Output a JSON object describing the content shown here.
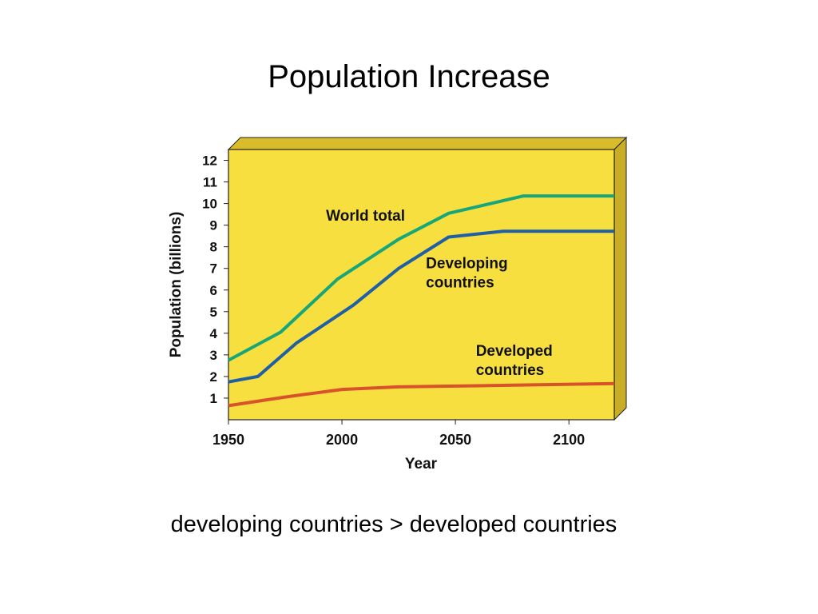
{
  "slide": {
    "title": "Population Increase",
    "caption": "developing countries > developed countries"
  },
  "colors": {
    "panel": "#f7df3f",
    "panel_top": "#d9bc2b",
    "panel_side": "#c9ad26",
    "world": "#17a67a",
    "developing": "#1f5fa6",
    "developed": "#d9532a"
  },
  "chart_data": {
    "type": "line",
    "title": "",
    "xlabel": "Year",
    "ylabel": "Population (billions)",
    "xlim": [
      1950,
      2120
    ],
    "ylim": [
      0,
      12.5
    ],
    "x_ticks": [
      1950,
      2000,
      2050,
      2100
    ],
    "y_ticks": [
      1,
      2,
      3,
      4,
      5,
      6,
      7,
      8,
      9,
      10,
      11,
      12
    ],
    "grid": false,
    "legend": "none",
    "series": [
      {
        "name": "World total",
        "color_key": "world",
        "label_lines": [
          "World total"
        ],
        "label_at": {
          "x": 1993,
          "y": 9.2
        },
        "points": [
          [
            1950,
            2.75
          ],
          [
            1973,
            4.05
          ],
          [
            1998,
            6.5
          ],
          [
            2025,
            8.35
          ],
          [
            2047,
            9.55
          ],
          [
            2080,
            10.35
          ],
          [
            2120,
            10.35
          ]
        ]
      },
      {
        "name": "Developing countries",
        "color_key": "developing",
        "label_lines": [
          "Developing",
          "countries"
        ],
        "label_at": {
          "x": 2037,
          "y": 7.0
        },
        "points": [
          [
            1950,
            1.75
          ],
          [
            1963,
            2.0
          ],
          [
            1980,
            3.55
          ],
          [
            2005,
            5.3
          ],
          [
            2025,
            7.0
          ],
          [
            2047,
            8.45
          ],
          [
            2071,
            8.72
          ],
          [
            2120,
            8.72
          ]
        ]
      },
      {
        "name": "Developed countries",
        "color_key": "developed",
        "label_lines": [
          "Developed",
          "countries"
        ],
        "label_at": {
          "x": 2059,
          "y": 2.95
        },
        "points": [
          [
            1950,
            0.65
          ],
          [
            1975,
            1.05
          ],
          [
            2000,
            1.4
          ],
          [
            2025,
            1.52
          ],
          [
            2060,
            1.57
          ],
          [
            2120,
            1.67
          ]
        ]
      }
    ]
  }
}
